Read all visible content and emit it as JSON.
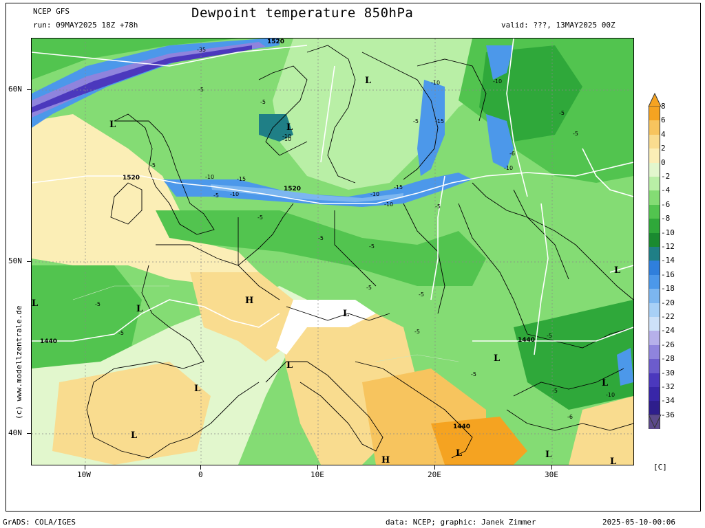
{
  "header": {
    "model": "NCEP GFS",
    "run": "run: 09MAY2025 18Z +78h",
    "title": "Dewpoint temperature 850hPa",
    "valid": "valid: ???, 13MAY2025 00Z"
  },
  "map": {
    "lat_labels": [
      "60N",
      "50N",
      "40N"
    ],
    "lon_labels": [
      "10W",
      "0",
      "10E",
      "20E",
      "30E"
    ],
    "pressure_labels": [
      "L",
      "L",
      "L",
      "L",
      "L",
      "L",
      "L",
      "L",
      "L",
      "L",
      "L",
      "L",
      "H",
      "H",
      "L",
      "L",
      "L"
    ],
    "isohypse_labels": [
      "1520",
      "1520",
      "1520",
      "1440",
      "1440",
      "1440"
    ],
    "contour_labels": [
      "-35",
      "-5",
      "-5",
      "-10",
      "-5",
      "-10",
      "-5",
      "-15",
      "-10",
      "-10",
      "-5",
      "-6",
      "-10",
      "-5",
      "-5",
      "-10",
      "-15",
      "-10",
      "-10",
      "-15",
      "-10",
      "-5",
      "-5",
      "-5",
      "-5",
      "-5",
      "-5",
      "-5",
      "-5",
      "-5",
      "-5",
      "-10",
      "-5",
      "-6",
      "-5"
    ],
    "credit": "(c) www.modellzentrale.de"
  },
  "colorbar": {
    "levels": [
      "8",
      "6",
      "4",
      "2",
      "0",
      "-2",
      "-4",
      "-6",
      "-8",
      "-10",
      "-12",
      "-14",
      "-16",
      "-18",
      "-20",
      "-22",
      "-24",
      "-26",
      "-28",
      "-30",
      "-32",
      "-34",
      "-36"
    ],
    "colors": [
      "#f5a321",
      "#f7c45e",
      "#f9dc8f",
      "#fbeeb6",
      "#e2f7cd",
      "#b9efa6",
      "#84dc74",
      "#52c44f",
      "#2fa83a",
      "#1a8a30",
      "#1f7f86",
      "#2f7fdc",
      "#4c98ea",
      "#7cb6f0",
      "#a8d0f6",
      "#cde1f8",
      "#b6b0ea",
      "#8f84dd",
      "#6c5ccc",
      "#4b38bd",
      "#3826a8",
      "#2e1e8c",
      "#5c4a8c"
    ],
    "unit": "[C]"
  },
  "footer": {
    "left": "GrADS: COLA/IGES",
    "center": "data: NCEP; graphic: Janek Zimmer",
    "right": "2025-05-10-00:06"
  }
}
